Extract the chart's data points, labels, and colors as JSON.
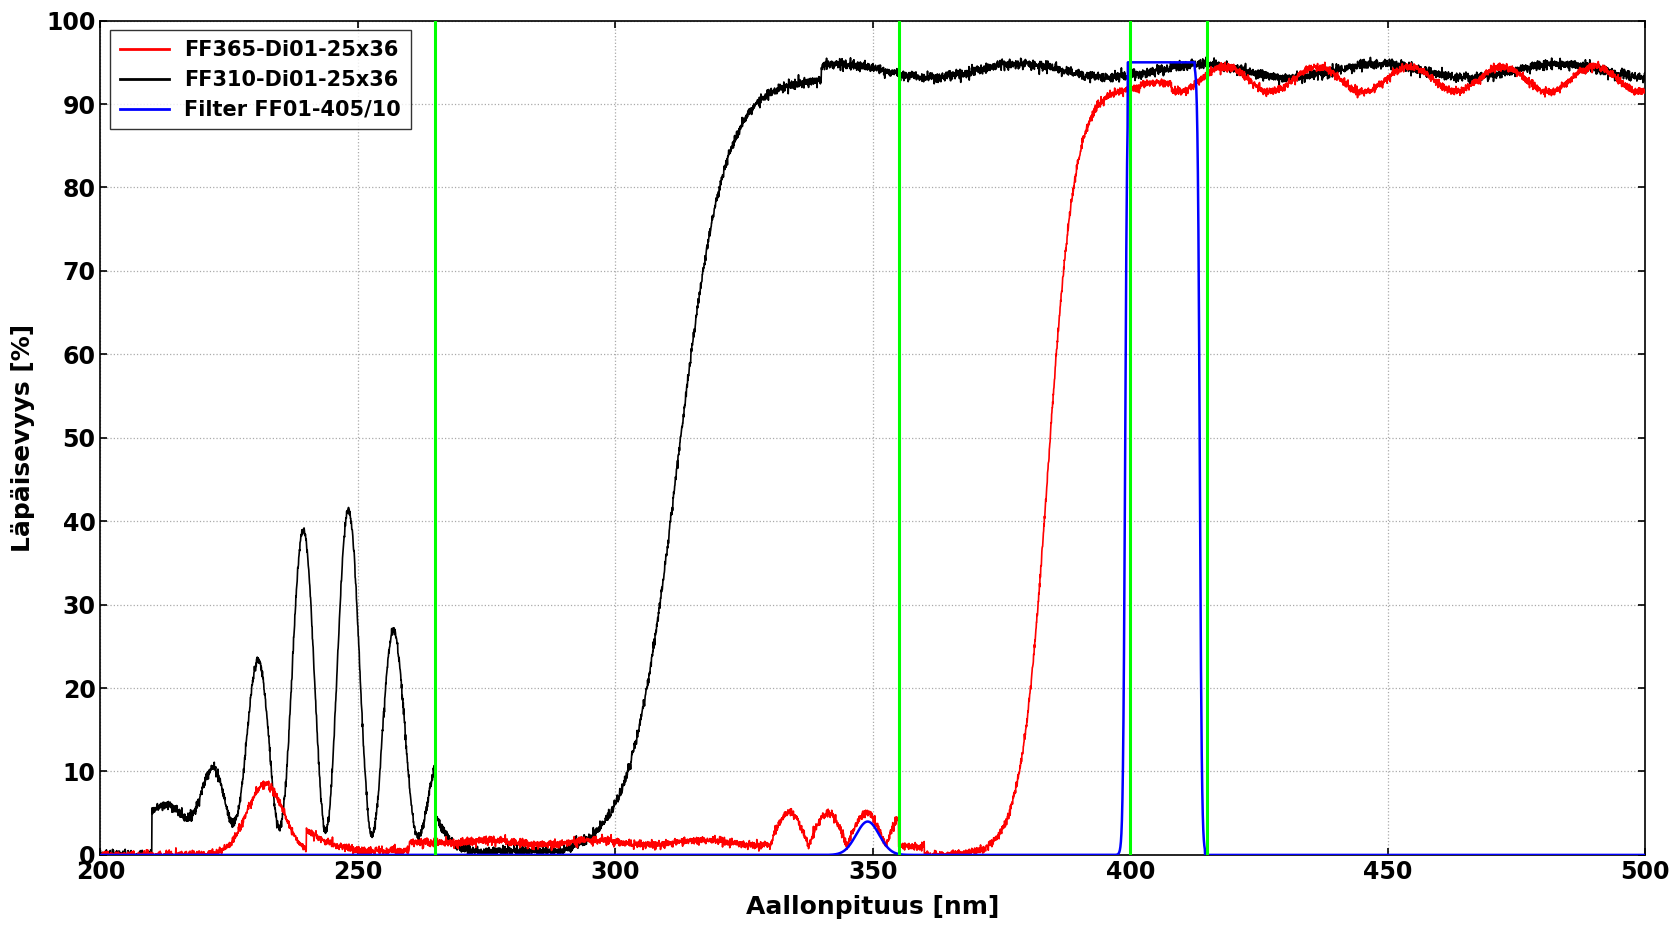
{
  "title": "",
  "xlabel": "Aallonpituus [nm]",
  "ylabel": "Läpäisevyys [%]",
  "xlim": [
    200,
    500
  ],
  "ylim": [
    0,
    100
  ],
  "xticks": [
    200,
    250,
    300,
    350,
    400,
    450,
    500
  ],
  "yticks": [
    0,
    10,
    20,
    30,
    40,
    50,
    60,
    70,
    80,
    90,
    100
  ],
  "green_lines": [
    265,
    355,
    400,
    415
  ],
  "legend_labels": [
    "FF365-Di01-25x36",
    "FF310-Di01-25x36",
    "Filter FF01-405/10"
  ],
  "legend_colors": [
    "red",
    "black",
    "blue"
  ],
  "background_color": "#ffffff"
}
